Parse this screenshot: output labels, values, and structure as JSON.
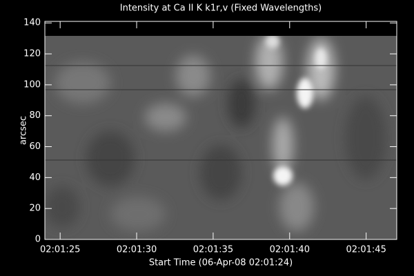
{
  "chart_data": {
    "type": "image",
    "title": "Intensity at Ca II K k1r,v (Fixed Wavelengths)",
    "x_label": "Start Time (06-Apr-08 02:01:24)",
    "y_label": "arcsec",
    "xlim": [
      0,
      23
    ],
    "xticks": [
      {
        "value": 1,
        "label": "02:01:25"
      },
      {
        "value": 6,
        "label": "02:01:30"
      },
      {
        "value": 11,
        "label": "02:01:35"
      },
      {
        "value": 16,
        "label": "02:01:40"
      },
      {
        "value": 21,
        "label": "02:01:45"
      }
    ],
    "ylim": [
      0,
      141
    ],
    "yticks": [
      0,
      20,
      40,
      60,
      80,
      100,
      120,
      140
    ]
  }
}
